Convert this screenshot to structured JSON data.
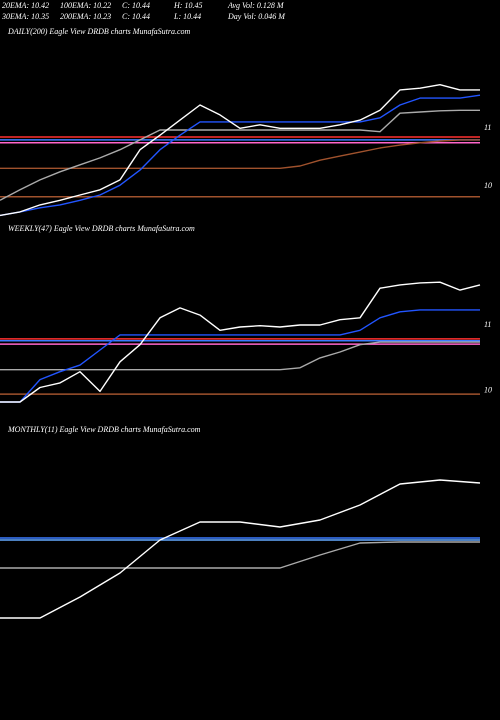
{
  "header": {
    "stats": [
      [
        "20EMA: 10.42",
        "100EMA: 10.22",
        "C: 10.44",
        "H: 10.45",
        "Avg Vol: 0.128  M"
      ],
      [
        "30EMA: 10.35",
        "200EMA: 10.23",
        "C: 10.44",
        "L: 10.44",
        "Day Vol: 0.046  M"
      ]
    ]
  },
  "chart_data": [
    {
      "type": "line",
      "title": "DAILY(200) Eagle   View   DRDB charts MunafaSutra.com",
      "categories": [
        null,
        null,
        null,
        null,
        null,
        null,
        null,
        null,
        null,
        null,
        null,
        null,
        null,
        null,
        null,
        null,
        null,
        null,
        null,
        null,
        null,
        null,
        null,
        null,
        null
      ],
      "ylim": [
        9.45,
        12.55
      ],
      "yticks": [
        10,
        11
      ],
      "hlines": [
        {
          "value": 10.88,
          "color": "#ff3030"
        },
        {
          "value": 10.83,
          "color": "#3a7bff"
        },
        {
          "value": 10.78,
          "color": "#ff66cc"
        },
        {
          "value": 9.85,
          "color": "#a0522d"
        }
      ],
      "series": [
        {
          "color": "#a0522d",
          "values": [
            10.34,
            10.34,
            10.34,
            10.34,
            10.34,
            10.34,
            10.34,
            10.34,
            10.34,
            10.34,
            10.34,
            10.34,
            10.34,
            10.34,
            10.34,
            10.38,
            10.48,
            10.55,
            10.62,
            10.69,
            10.74,
            10.78,
            10.81,
            10.83,
            10.83
          ]
        },
        {
          "color": "#aaaaaa",
          "values": [
            9.79,
            9.97,
            10.14,
            10.28,
            10.4,
            10.52,
            10.66,
            10.83,
            11.0,
            11.0,
            11.0,
            11.0,
            11.0,
            11.0,
            11.0,
            11.0,
            11.0,
            11.0,
            11.0,
            10.97,
            11.29,
            11.31,
            11.33,
            11.34,
            11.34
          ]
        },
        {
          "color": "#2255ff",
          "values": [
            9.53,
            9.59,
            9.66,
            9.71,
            9.79,
            9.88,
            10.05,
            10.31,
            10.66,
            10.91,
            11.14,
            11.14,
            11.14,
            11.14,
            11.14,
            11.14,
            11.14,
            11.14,
            11.14,
            11.21,
            11.43,
            11.55,
            11.55,
            11.55,
            11.6
          ]
        },
        {
          "color": "#ffffff",
          "values": [
            9.53,
            9.59,
            9.71,
            9.79,
            9.88,
            9.97,
            10.14,
            10.66,
            10.91,
            11.17,
            11.43,
            11.26,
            11.03,
            11.09,
            11.03,
            11.03,
            11.03,
            11.09,
            11.17,
            11.34,
            11.69,
            11.72,
            11.78,
            11.69,
            11.69
          ]
        }
      ]
    },
    {
      "type": "line",
      "title": "WEEKLY(47) Eagle   View   DRDB charts MunafaSutra.com",
      "categories": [
        null,
        null,
        null,
        null,
        null,
        null,
        null,
        null,
        null,
        null,
        null,
        null,
        null,
        null,
        null,
        null,
        null,
        null,
        null,
        null,
        null,
        null,
        null,
        null,
        null
      ],
      "ylim": [
        9.89,
        12.55
      ],
      "yticks": [
        10,
        11
      ],
      "hlines": [
        {
          "value": 10.82,
          "color": "#ff3030"
        },
        {
          "value": 10.79,
          "color": "#3a7bff"
        },
        {
          "value": 10.74,
          "color": "#ff66cc"
        },
        {
          "value": 9.98,
          "color": "#a0522d"
        }
      ],
      "series": [
        {
          "color": "#aaaaaa",
          "values": [
            10.35,
            10.35,
            10.35,
            10.35,
            10.35,
            10.35,
            10.35,
            10.35,
            10.35,
            10.35,
            10.35,
            10.35,
            10.35,
            10.35,
            10.35,
            10.38,
            10.53,
            10.62,
            10.73,
            10.77,
            10.77,
            10.77,
            10.77,
            10.77,
            10.77
          ]
        },
        {
          "color": "#2255ff",
          "values": [
            9.86,
            9.86,
            10.2,
            10.32,
            10.42,
            10.65,
            10.88,
            10.88,
            10.88,
            10.88,
            10.88,
            10.88,
            10.88,
            10.88,
            10.88,
            10.88,
            10.88,
            10.88,
            10.95,
            11.14,
            11.23,
            11.26,
            11.26,
            11.26,
            11.26
          ]
        },
        {
          "color": "#ffffff",
          "values": [
            9.86,
            9.86,
            10.08,
            10.15,
            10.32,
            10.02,
            10.47,
            10.73,
            11.14,
            11.29,
            11.18,
            10.95,
            11.0,
            11.02,
            11.0,
            11.03,
            11.03,
            11.11,
            11.14,
            11.59,
            11.64,
            11.67,
            11.68,
            11.56,
            11.64
          ]
        }
      ]
    },
    {
      "type": "line",
      "title": "MONTHLY(11) Eagle   View   DRDB charts MunafaSutra.com",
      "categories": [
        null,
        null,
        null,
        null,
        null,
        null,
        null,
        null,
        null,
        null,
        null,
        null,
        null
      ],
      "ylim": [
        9.5,
        12.1
      ],
      "hlines": [
        {
          "value": 11.12,
          "color": "#3a7bff"
        },
        {
          "value": 11.1,
          "color": "#66aaff"
        }
      ],
      "series": [
        {
          "color": "#aaaaaa",
          "values": [
            10.82,
            10.82,
            10.82,
            10.82,
            10.82,
            10.82,
            10.82,
            10.82,
            10.95,
            11.07,
            11.08,
            11.08,
            11.08
          ]
        },
        {
          "color": "#ffffff",
          "values": [
            10.32,
            10.32,
            10.53,
            10.77,
            11.1,
            11.28,
            11.28,
            11.23,
            11.3,
            11.45,
            11.66,
            11.7,
            11.67
          ]
        }
      ]
    }
  ]
}
